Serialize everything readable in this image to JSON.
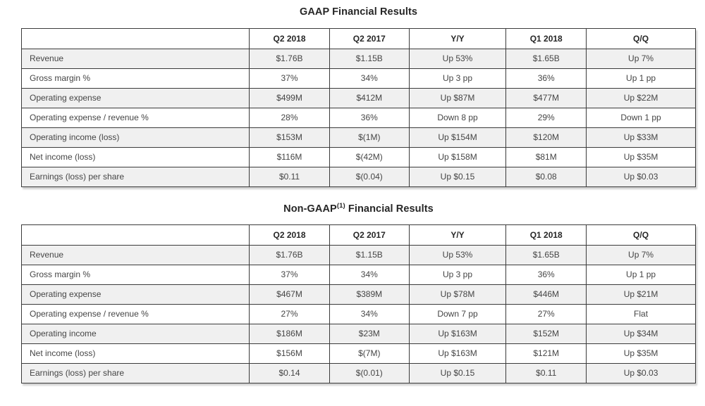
{
  "colors": {
    "border": "#3b3b3b",
    "shaded_row": "#f0f0f0",
    "header_text": "#262626",
    "cell_text": "#454545",
    "background": "#ffffff"
  },
  "tables": [
    {
      "name": "gaap",
      "title_pre": "GAAP Financial Results",
      "title_sup": "",
      "title_post": "",
      "columns": [
        "",
        "Q2 2018",
        "Q2 2017",
        "Y/Y",
        "Q1 2018",
        "Q/Q"
      ],
      "rows": [
        {
          "label": "Revenue",
          "values": [
            "$1.76B",
            "$1.15B",
            "Up 53%",
            "$1.65B",
            "Up 7%"
          ]
        },
        {
          "label": "Gross margin %",
          "values": [
            "37%",
            "34%",
            "Up 3 pp",
            "36%",
            "Up 1 pp"
          ]
        },
        {
          "label": "Operating expense",
          "values": [
            "$499M",
            "$412M",
            "Up $87M",
            "$477M",
            "Up $22M"
          ]
        },
        {
          "label": "Operating expense / revenue %",
          "values": [
            "28%",
            "36%",
            "Down 8 pp",
            "29%",
            "Down 1 pp"
          ]
        },
        {
          "label": "Operating income (loss)",
          "values": [
            "$153M",
            "$(1M)",
            "Up $154M",
            "$120M",
            "Up $33M"
          ]
        },
        {
          "label": "Net income (loss)",
          "values": [
            "$116M",
            "$(42M)",
            "Up $158M",
            "$81M",
            "Up $35M"
          ]
        },
        {
          "label": "Earnings (loss) per share",
          "values": [
            "$0.11",
            "$(0.04)",
            "Up $0.15",
            "$0.08",
            "Up $0.03"
          ]
        }
      ]
    },
    {
      "name": "non-gaap",
      "title_pre": "Non-GAAP",
      "title_sup": "(1)",
      "title_post": " Financial Results",
      "columns": [
        "",
        "Q2 2018",
        "Q2 2017",
        "Y/Y",
        "Q1 2018",
        "Q/Q"
      ],
      "rows": [
        {
          "label": "Revenue",
          "values": [
            "$1.76B",
            "$1.15B",
            "Up 53%",
            "$1.65B",
            "Up 7%"
          ]
        },
        {
          "label": "Gross margin %",
          "values": [
            "37%",
            "34%",
            "Up 3 pp",
            "36%",
            "Up 1 pp"
          ]
        },
        {
          "label": "Operating expense",
          "values": [
            "$467M",
            "$389M",
            "Up $78M",
            "$446M",
            "Up $21M"
          ]
        },
        {
          "label": "Operating expense / revenue %",
          "values": [
            "27%",
            "34%",
            "Down 7 pp",
            "27%",
            "Flat"
          ]
        },
        {
          "label": "Operating income",
          "values": [
            "$186M",
            "$23M",
            "Up $163M",
            "$152M",
            "Up $34M"
          ]
        },
        {
          "label": "Net income (loss)",
          "values": [
            "$156M",
            "$(7M)",
            "Up $163M",
            "$121M",
            "Up $35M"
          ]
        },
        {
          "label": "Earnings (loss) per share",
          "values": [
            "$0.14",
            "$(0.01)",
            "Up $0.15",
            "$0.11",
            "Up $0.03"
          ]
        }
      ]
    }
  ]
}
